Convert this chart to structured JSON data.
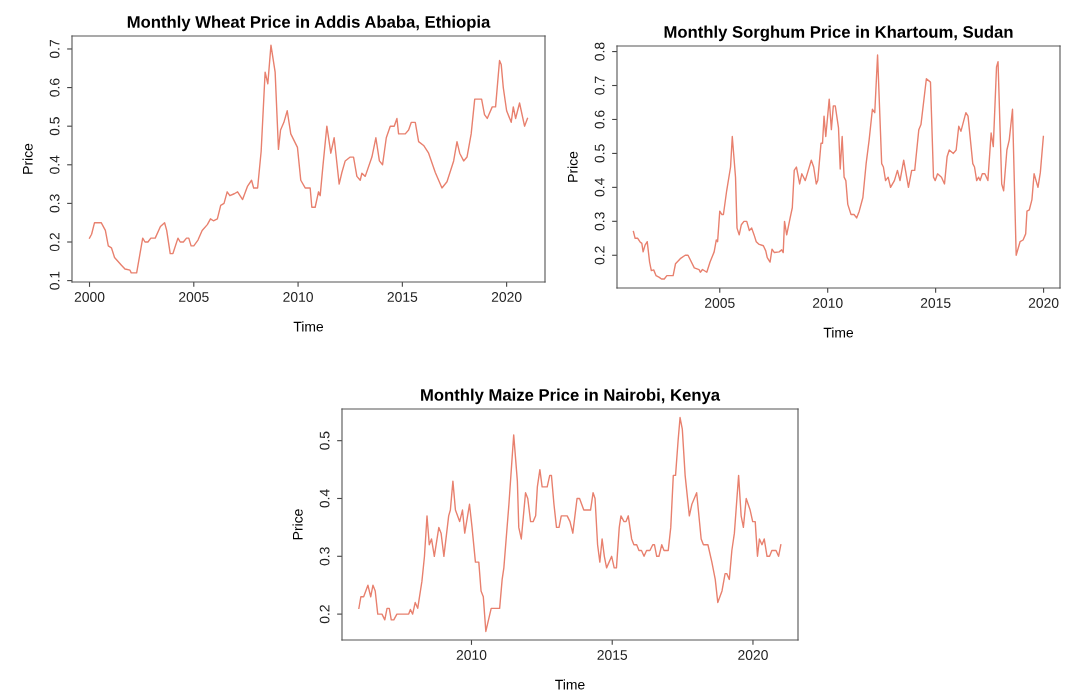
{
  "chart_data": [
    {
      "type": "line",
      "title": "Monthly Wheat Price in Addis Ababa, Ethiopia",
      "xlabel": "Time",
      "ylabel": "Price",
      "xlim": [
        1999.16,
        2021.84
      ],
      "ylim": [
        0.0964,
        0.7336
      ],
      "xticks": [
        2000,
        2005,
        2010,
        2015,
        2020
      ],
      "yticks": [
        0.1,
        0.2,
        0.3,
        0.4,
        0.5,
        0.6,
        0.7
      ],
      "grid": false,
      "line_style": "solid",
      "marker": "none",
      "x": [
        2000.0,
        2000.1,
        2000.24,
        2000.56,
        2000.76,
        2000.9,
        2001.05,
        2001.2,
        2001.53,
        2001.7,
        2001.94,
        2002.0,
        2002.26,
        2002.55,
        2002.66,
        2002.8,
        2002.94,
        2003.15,
        2003.4,
        2003.6,
        2003.7,
        2003.87,
        2004.0,
        2004.24,
        2004.35,
        2004.5,
        2004.65,
        2004.76,
        2004.87,
        2005.0,
        2005.2,
        2005.4,
        2005.65,
        2005.8,
        2005.94,
        2006.13,
        2006.29,
        2006.45,
        2006.6,
        2006.73,
        2006.94,
        2007.1,
        2007.34,
        2007.58,
        2007.77,
        2007.87,
        2008.06,
        2008.23,
        2008.42,
        2008.55,
        2008.7,
        2008.9,
        2009.06,
        2009.16,
        2009.32,
        2009.48,
        2009.65,
        2009.97,
        2010.13,
        2010.34,
        2010.58,
        2010.66,
        2010.82,
        2010.98,
        2011.06,
        2011.19,
        2011.38,
        2011.57,
        2011.73,
        2011.97,
        2012.1,
        2012.26,
        2012.5,
        2012.66,
        2012.82,
        2012.98,
        2013.06,
        2013.22,
        2013.54,
        2013.73,
        2013.9,
        2014.05,
        2014.23,
        2014.42,
        2014.61,
        2014.74,
        2014.82,
        2015.14,
        2015.3,
        2015.43,
        2015.62,
        2015.78,
        2016.02,
        2016.26,
        2016.58,
        2016.9,
        2017.14,
        2017.46,
        2017.62,
        2017.75,
        2017.94,
        2018.1,
        2018.3,
        2018.47,
        2018.67,
        2018.8,
        2018.94,
        2019.07,
        2019.31,
        2019.47,
        2019.66,
        2019.74,
        2019.84,
        2020.0,
        2020.22,
        2020.32,
        2020.43,
        2020.62,
        2020.86,
        2021.0
      ],
      "series": [
        {
          "color": "#e8806e",
          "values": [
            0.21,
            0.22,
            0.25,
            0.25,
            0.23,
            0.19,
            0.185,
            0.16,
            0.14,
            0.13,
            0.127,
            0.12,
            0.12,
            0.21,
            0.2,
            0.2,
            0.21,
            0.21,
            0.24,
            0.25,
            0.23,
            0.17,
            0.17,
            0.21,
            0.2,
            0.2,
            0.21,
            0.21,
            0.19,
            0.19,
            0.205,
            0.23,
            0.245,
            0.26,
            0.255,
            0.26,
            0.295,
            0.3,
            0.33,
            0.32,
            0.325,
            0.33,
            0.31,
            0.345,
            0.36,
            0.34,
            0.34,
            0.435,
            0.64,
            0.61,
            0.71,
            0.64,
            0.44,
            0.49,
            0.51,
            0.54,
            0.48,
            0.445,
            0.36,
            0.34,
            0.34,
            0.29,
            0.29,
            0.33,
            0.32,
            0.396,
            0.5,
            0.43,
            0.47,
            0.35,
            0.38,
            0.41,
            0.42,
            0.42,
            0.37,
            0.36,
            0.378,
            0.37,
            0.42,
            0.47,
            0.41,
            0.4,
            0.47,
            0.5,
            0.5,
            0.52,
            0.48,
            0.48,
            0.49,
            0.51,
            0.51,
            0.46,
            0.45,
            0.43,
            0.38,
            0.34,
            0.356,
            0.41,
            0.46,
            0.43,
            0.41,
            0.42,
            0.48,
            0.57,
            0.57,
            0.57,
            0.53,
            0.52,
            0.55,
            0.55,
            0.67,
            0.66,
            0.6,
            0.54,
            0.51,
            0.55,
            0.52,
            0.56,
            0.5,
            0.52
          ]
        }
      ]
    },
    {
      "type": "line",
      "title": "Monthly Sorghum Price in Khartoum, Sudan",
      "xlabel": "Time",
      "ylabel": "Price",
      "xlim": [
        2000.24,
        2020.76
      ],
      "ylim": [
        0.1036,
        0.8164
      ],
      "xticks": [
        2005,
        2010,
        2015,
        2020
      ],
      "yticks": [
        0.2,
        0.3,
        0.4,
        0.5,
        0.6,
        0.7,
        0.8
      ],
      "grid": false,
      "line_style": "solid",
      "marker": "none",
      "x": [
        2001.0,
        2001.08,
        2001.2,
        2001.3,
        2001.39,
        2001.45,
        2001.54,
        2001.64,
        2001.75,
        2001.83,
        2001.94,
        2002.05,
        2002.2,
        2002.3,
        2002.43,
        2002.55,
        2002.84,
        2002.95,
        2003.17,
        2003.4,
        2003.53,
        2003.82,
        2004.04,
        2004.1,
        2004.2,
        2004.4,
        2004.55,
        2004.74,
        2004.84,
        2004.9,
        2005.0,
        2005.1,
        2005.17,
        2005.32,
        2005.5,
        2005.58,
        2005.73,
        2005.8,
        2005.9,
        2006.0,
        2006.12,
        2006.25,
        2006.37,
        2006.48,
        2006.59,
        2006.69,
        2006.8,
        2007.02,
        2007.13,
        2007.2,
        2007.33,
        2007.42,
        2007.53,
        2007.75,
        2007.87,
        2007.94,
        2008.0,
        2008.1,
        2008.26,
        2008.36,
        2008.45,
        2008.55,
        2008.7,
        2008.8,
        2008.96,
        2009.1,
        2009.24,
        2009.35,
        2009.47,
        2009.54,
        2009.69,
        2009.76,
        2009.83,
        2009.91,
        2010.07,
        2010.17,
        2010.26,
        2010.35,
        2010.5,
        2010.58,
        2010.67,
        2010.76,
        2010.84,
        2010.93,
        2011.08,
        2011.22,
        2011.34,
        2011.46,
        2011.63,
        2011.78,
        2011.92,
        2012.07,
        2012.18,
        2012.31,
        2012.5,
        2012.58,
        2012.68,
        2012.8,
        2012.91,
        2013.09,
        2013.23,
        2013.35,
        2013.52,
        2013.74,
        2013.89,
        2014.03,
        2014.22,
        2014.32,
        2014.57,
        2014.76,
        2014.9,
        2014.98,
        2015.09,
        2015.27,
        2015.41,
        2015.53,
        2015.63,
        2015.82,
        2015.95,
        2016.07,
        2016.17,
        2016.4,
        2016.5,
        2016.72,
        2016.8,
        2016.9,
        2016.99,
        2017.06,
        2017.16,
        2017.28,
        2017.42,
        2017.57,
        2017.67,
        2017.82,
        2017.89,
        2018.06,
        2018.15,
        2018.3,
        2018.41,
        2018.56,
        2018.73,
        2018.91,
        2019.05,
        2019.17,
        2019.23,
        2019.34,
        2019.46,
        2019.56,
        2019.74,
        2019.85,
        2019.99
      ],
      "series": [
        {
          "color": "#e8806e",
          "values": [
            0.27,
            0.25,
            0.25,
            0.24,
            0.235,
            0.21,
            0.23,
            0.24,
            0.18,
            0.155,
            0.157,
            0.14,
            0.135,
            0.13,
            0.13,
            0.14,
            0.14,
            0.175,
            0.19,
            0.2,
            0.2,
            0.163,
            0.158,
            0.15,
            0.158,
            0.15,
            0.18,
            0.21,
            0.245,
            0.24,
            0.33,
            0.32,
            0.32,
            0.39,
            0.46,
            0.55,
            0.43,
            0.28,
            0.26,
            0.29,
            0.3,
            0.3,
            0.273,
            0.28,
            0.26,
            0.24,
            0.233,
            0.228,
            0.213,
            0.193,
            0.18,
            0.218,
            0.208,
            0.21,
            0.216,
            0.208,
            0.3,
            0.26,
            0.31,
            0.34,
            0.45,
            0.46,
            0.41,
            0.44,
            0.42,
            0.45,
            0.48,
            0.46,
            0.41,
            0.42,
            0.53,
            0.53,
            0.61,
            0.55,
            0.66,
            0.57,
            0.64,
            0.64,
            0.575,
            0.454,
            0.55,
            0.43,
            0.42,
            0.35,
            0.32,
            0.32,
            0.31,
            0.33,
            0.37,
            0.47,
            0.54,
            0.63,
            0.62,
            0.79,
            0.47,
            0.46,
            0.42,
            0.43,
            0.4,
            0.42,
            0.45,
            0.42,
            0.48,
            0.4,
            0.45,
            0.45,
            0.57,
            0.585,
            0.72,
            0.71,
            0.43,
            0.42,
            0.44,
            0.43,
            0.41,
            0.49,
            0.51,
            0.5,
            0.51,
            0.58,
            0.565,
            0.62,
            0.61,
            0.47,
            0.46,
            0.42,
            0.43,
            0.42,
            0.44,
            0.44,
            0.42,
            0.56,
            0.52,
            0.755,
            0.77,
            0.41,
            0.39,
            0.51,
            0.54,
            0.63,
            0.2,
            0.24,
            0.245,
            0.263,
            0.33,
            0.334,
            0.364,
            0.44,
            0.4,
            0.444,
            0.55
          ]
        }
      ]
    },
    {
      "type": "line",
      "title": "Monthly Maize Price in Nairobi, Kenya",
      "xlabel": "Time",
      "ylabel": "Price",
      "xlim": [
        2005.4,
        2021.6
      ],
      "ylim": [
        0.1552,
        0.5548
      ],
      "xticks": [
        2010,
        2015,
        2020
      ],
      "yticks": [
        0.2,
        0.3,
        0.4,
        0.5
      ],
      "grid": false,
      "line_style": "solid",
      "marker": "none",
      "x": [
        2006.0,
        2006.07,
        2006.17,
        2006.32,
        2006.42,
        2006.5,
        2006.58,
        2006.67,
        2006.82,
        2006.92,
        2007.0,
        2007.08,
        2007.15,
        2007.24,
        2007.35,
        2007.77,
        2007.83,
        2007.91,
        2008.0,
        2008.09,
        2008.24,
        2008.33,
        2008.42,
        2008.5,
        2008.58,
        2008.68,
        2008.84,
        2008.92,
        2009.02,
        2009.19,
        2009.25,
        2009.34,
        2009.43,
        2009.58,
        2009.68,
        2009.76,
        2009.93,
        2010.02,
        2010.14,
        2010.26,
        2010.34,
        2010.42,
        2010.51,
        2010.7,
        2011.0,
        2011.09,
        2011.15,
        2011.33,
        2011.5,
        2011.63,
        2011.68,
        2011.77,
        2011.92,
        2012.0,
        2012.1,
        2012.19,
        2012.28,
        2012.34,
        2012.43,
        2012.51,
        2012.69,
        2012.78,
        2012.84,
        2012.93,
        2013.02,
        2013.11,
        2013.19,
        2013.4,
        2013.5,
        2013.6,
        2013.75,
        2013.84,
        2013.99,
        2014.23,
        2014.32,
        2014.39,
        2014.48,
        2014.56,
        2014.64,
        2014.72,
        2014.8,
        2014.98,
        2015.07,
        2015.15,
        2015.25,
        2015.31,
        2015.42,
        2015.49,
        2015.57,
        2015.69,
        2015.77,
        2015.87,
        2015.95,
        2016.04,
        2016.13,
        2016.22,
        2016.34,
        2016.44,
        2016.5,
        2016.58,
        2016.66,
        2016.76,
        2016.84,
        2016.99,
        2017.08,
        2017.17,
        2017.25,
        2017.34,
        2017.41,
        2017.49,
        2017.59,
        2017.74,
        2017.83,
        2018.0,
        2018.16,
        2018.24,
        2018.4,
        2018.54,
        2018.66,
        2018.75,
        2018.9,
        2019.01,
        2019.07,
        2019.16,
        2019.25,
        2019.34,
        2019.49,
        2019.58,
        2019.66,
        2019.76,
        2019.9,
        2019.99,
        2020.08,
        2020.16,
        2020.23,
        2020.32,
        2020.4,
        2020.5,
        2020.59,
        2020.67,
        2020.82,
        2020.91,
        2020.99
      ],
      "series": [
        {
          "color": "#e8806e",
          "values": [
            0.21,
            0.23,
            0.23,
            0.25,
            0.23,
            0.25,
            0.24,
            0.2,
            0.2,
            0.19,
            0.21,
            0.21,
            0.19,
            0.19,
            0.2,
            0.2,
            0.208,
            0.2,
            0.22,
            0.21,
            0.257,
            0.3,
            0.37,
            0.32,
            0.33,
            0.3,
            0.35,
            0.34,
            0.3,
            0.37,
            0.38,
            0.43,
            0.38,
            0.36,
            0.38,
            0.34,
            0.39,
            0.35,
            0.29,
            0.29,
            0.24,
            0.23,
            0.17,
            0.21,
            0.21,
            0.26,
            0.28,
            0.39,
            0.51,
            0.43,
            0.35,
            0.33,
            0.41,
            0.4,
            0.36,
            0.36,
            0.37,
            0.42,
            0.45,
            0.42,
            0.42,
            0.44,
            0.44,
            0.39,
            0.35,
            0.35,
            0.37,
            0.37,
            0.36,
            0.34,
            0.4,
            0.4,
            0.38,
            0.38,
            0.41,
            0.4,
            0.32,
            0.29,
            0.33,
            0.3,
            0.28,
            0.3,
            0.28,
            0.28,
            0.35,
            0.37,
            0.36,
            0.36,
            0.37,
            0.33,
            0.32,
            0.32,
            0.31,
            0.31,
            0.3,
            0.31,
            0.31,
            0.32,
            0.32,
            0.3,
            0.3,
            0.32,
            0.31,
            0.31,
            0.35,
            0.44,
            0.44,
            0.5,
            0.54,
            0.52,
            0.44,
            0.37,
            0.39,
            0.41,
            0.33,
            0.32,
            0.32,
            0.29,
            0.26,
            0.22,
            0.24,
            0.27,
            0.27,
            0.26,
            0.31,
            0.34,
            0.44,
            0.37,
            0.35,
            0.4,
            0.38,
            0.36,
            0.36,
            0.3,
            0.33,
            0.32,
            0.33,
            0.3,
            0.3,
            0.31,
            0.31,
            0.3,
            0.32
          ]
        }
      ]
    }
  ]
}
